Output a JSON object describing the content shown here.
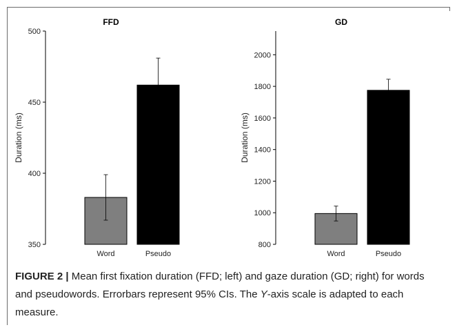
{
  "chart_data": [
    {
      "type": "bar",
      "title": "FFD",
      "ylabel": "Duration (ms)",
      "xlabel": "",
      "categories": [
        "Word",
        "Pseudo"
      ],
      "values": [
        383,
        462
      ],
      "error_low": [
        367,
        443
      ],
      "error_high": [
        399,
        481
      ],
      "ylim": [
        350,
        500
      ],
      "yticks": [
        350,
        400,
        450,
        500
      ],
      "bar_colors": [
        "#7f7f7f",
        "#000000"
      ],
      "grid": false
    },
    {
      "type": "bar",
      "title": "GD",
      "ylabel": "Duration (ms)",
      "xlabel": "",
      "categories": [
        "Word",
        "Pseudo"
      ],
      "values": [
        995,
        1775
      ],
      "error_low": [
        948,
        1705
      ],
      "error_high": [
        1042,
        1845
      ],
      "ylim": [
        800,
        2150
      ],
      "yticks": [
        800,
        1000,
        1200,
        1400,
        1600,
        1800,
        2000
      ],
      "bar_colors": [
        "#7f7f7f",
        "#000000"
      ],
      "grid": false
    }
  ],
  "caption": {
    "label": "FIGURE 2",
    "separator": "|",
    "text_part1": " Mean first fixation duration (FFD; left) and gaze duration (GD; right) for words and pseudowords. Errorbars represent 95% CIs. The ",
    "italic": "Y",
    "text_part2": "-axis scale is adapted to each measure."
  }
}
